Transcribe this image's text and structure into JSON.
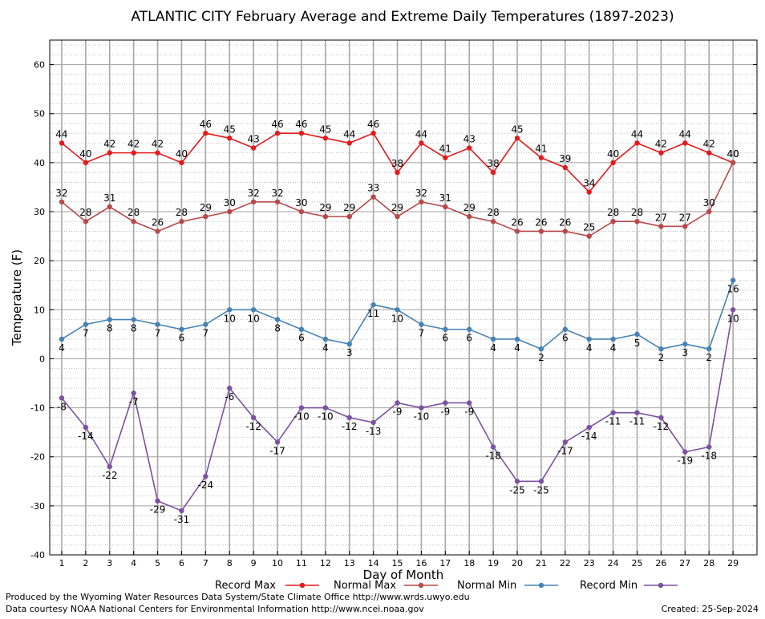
{
  "chart_data": {
    "type": "line",
    "title": "ATLANTIC CITY February Average and Extreme Daily Temperatures (1897-2023)",
    "xlabel": "Day of Month",
    "ylabel": "Temperature (F)",
    "ylim": [
      -40,
      65
    ],
    "yticks": [
      60,
      50,
      40,
      30,
      20,
      10,
      0,
      -10,
      -20,
      -30,
      -40
    ],
    "x": [
      1,
      2,
      3,
      4,
      5,
      6,
      7,
      8,
      9,
      10,
      11,
      12,
      13,
      14,
      15,
      16,
      17,
      18,
      19,
      20,
      21,
      22,
      23,
      24,
      25,
      26,
      27,
      28,
      29
    ],
    "grid": true,
    "legend_position": "bottom",
    "series": [
      {
        "name": "Record Max",
        "color": "#e41a1c",
        "label_pos": "above",
        "values": [
          44,
          40,
          42,
          42,
          42,
          40,
          46,
          45,
          43,
          46,
          46,
          45,
          44,
          46,
          38,
          44,
          41,
          43,
          38,
          45,
          41,
          39,
          34,
          40,
          44,
          42,
          44,
          42,
          40
        ]
      },
      {
        "name": "Normal Max",
        "color": "#b8484a",
        "label_pos": "above",
        "values": [
          32,
          28,
          31,
          28,
          26,
          28,
          29,
          30,
          32,
          32,
          30,
          29,
          29,
          33,
          29,
          32,
          31,
          29,
          28,
          26,
          26,
          26,
          25,
          28,
          28,
          27,
          27,
          30,
          40
        ]
      },
      {
        "name": "Normal Min",
        "color": "#4682b4",
        "label_pos": "below",
        "values": [
          4,
          7,
          8,
          8,
          7,
          6,
          7,
          10,
          10,
          8,
          6,
          4,
          3,
          11,
          10,
          7,
          6,
          6,
          4,
          4,
          2,
          6,
          4,
          4,
          5,
          2,
          3,
          2,
          16
        ]
      },
      {
        "name": "Record Min",
        "color": "#7b52a0",
        "label_pos": "below",
        "values": [
          -8,
          -14,
          -22,
          -7,
          -29,
          -31,
          -24,
          -6,
          -12,
          -17,
          -10,
          -10,
          -12,
          -13,
          -9,
          -10,
          -9,
          -9,
          -18,
          -25,
          -25,
          -17,
          -14,
          -11,
          -11,
          -12,
          -19,
          -18,
          10
        ]
      }
    ]
  },
  "credits": {
    "produced_by": "Produced by the Wyoming Water Resources Data System/State Climate Office http://www.wrds.uwyo.edu",
    "data_courtesy": "Data courtesy NOAA National Centers for Environmental Information http://www.ncei.noaa.gov",
    "created": "Created:  25-Sep-2024"
  }
}
